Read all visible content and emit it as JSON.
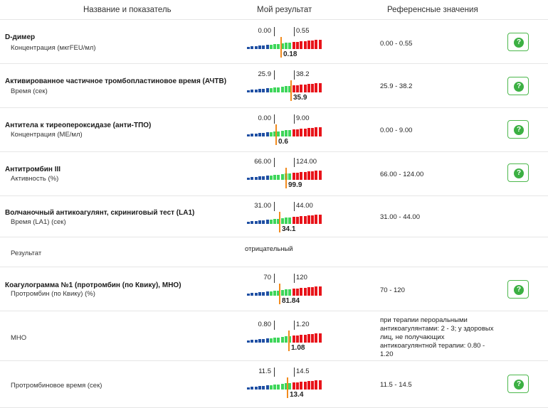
{
  "header": {
    "col_name": "Название и показатель",
    "col_result": "Мой результат",
    "col_ref": "Референсные значения"
  },
  "help_glyph": "?",
  "colors": {
    "low": "#1f4fa3",
    "normal": "#3ed65a",
    "high": "#e8141a",
    "needle": "#f28b1e",
    "help": "#3cb043"
  },
  "rows": [
    {
      "name": "D-димер",
      "sub": "Концентрация (мкгFEU/мл)",
      "ref": "0.00 - 0.55",
      "gauge": {
        "low": "0.00",
        "high": "0.55",
        "value": "0.18"
      },
      "help": true
    },
    {
      "name": "Активированное частичное тромбопластиновое время (АЧТВ)",
      "sub": "Время (сек)",
      "ref": "25.9 - 38.2",
      "gauge": {
        "low": "25.9",
        "high": "38.2",
        "value": "35.9"
      },
      "help": true
    },
    {
      "name": "Антитела к тиреопероксидазе (анти-ТПО)",
      "sub": "Концентрация (МЕ/мл)",
      "ref": "0.00 - 9.00",
      "gauge": {
        "low": "0.00",
        "high": "9.00",
        "value": "0.6"
      },
      "help": true
    },
    {
      "name": "Антитромбин III",
      "sub": "Активность (%)",
      "ref": "66.00 - 124.00",
      "gauge": {
        "low": "66.00",
        "high": "124.00",
        "value": "99.9"
      },
      "help": true
    },
    {
      "name": "Волчаночный антикоагулянт, скриниговый тест (LA1)",
      "sub": "Время (LA1) (сек)",
      "ref": "31.00 - 44.00",
      "gauge": {
        "low": "31.00",
        "high": "44.00",
        "value": "34.1"
      },
      "help": false
    },
    {
      "name": "",
      "sub": "Результат",
      "ref": "",
      "result_text": "отрицательный",
      "help": false
    },
    {
      "name": "Коагулограмма №1 (протромбин (по Квику), МНО)",
      "sub": "Протромбин (по Квику) (%)",
      "ref": "70 - 120",
      "gauge": {
        "low": "70",
        "high": "120",
        "value": "81.84"
      },
      "help": true
    },
    {
      "name": "",
      "sub": "МНО",
      "ref": "при терапии пероральными антикоагулянтами: 2 - 3; у здоровых лиц, не получающих антикоагулянтной терапии: 0.80 - 1.20",
      "gauge": {
        "low": "0.80",
        "high": "1.20",
        "value": "1.08"
      },
      "help": false
    },
    {
      "name": "",
      "sub": "Протромбиновое время (сек)",
      "ref": "11.5 - 14.5",
      "gauge": {
        "low": "11.5",
        "high": "14.5",
        "value": "13.4"
      },
      "help": true
    }
  ]
}
